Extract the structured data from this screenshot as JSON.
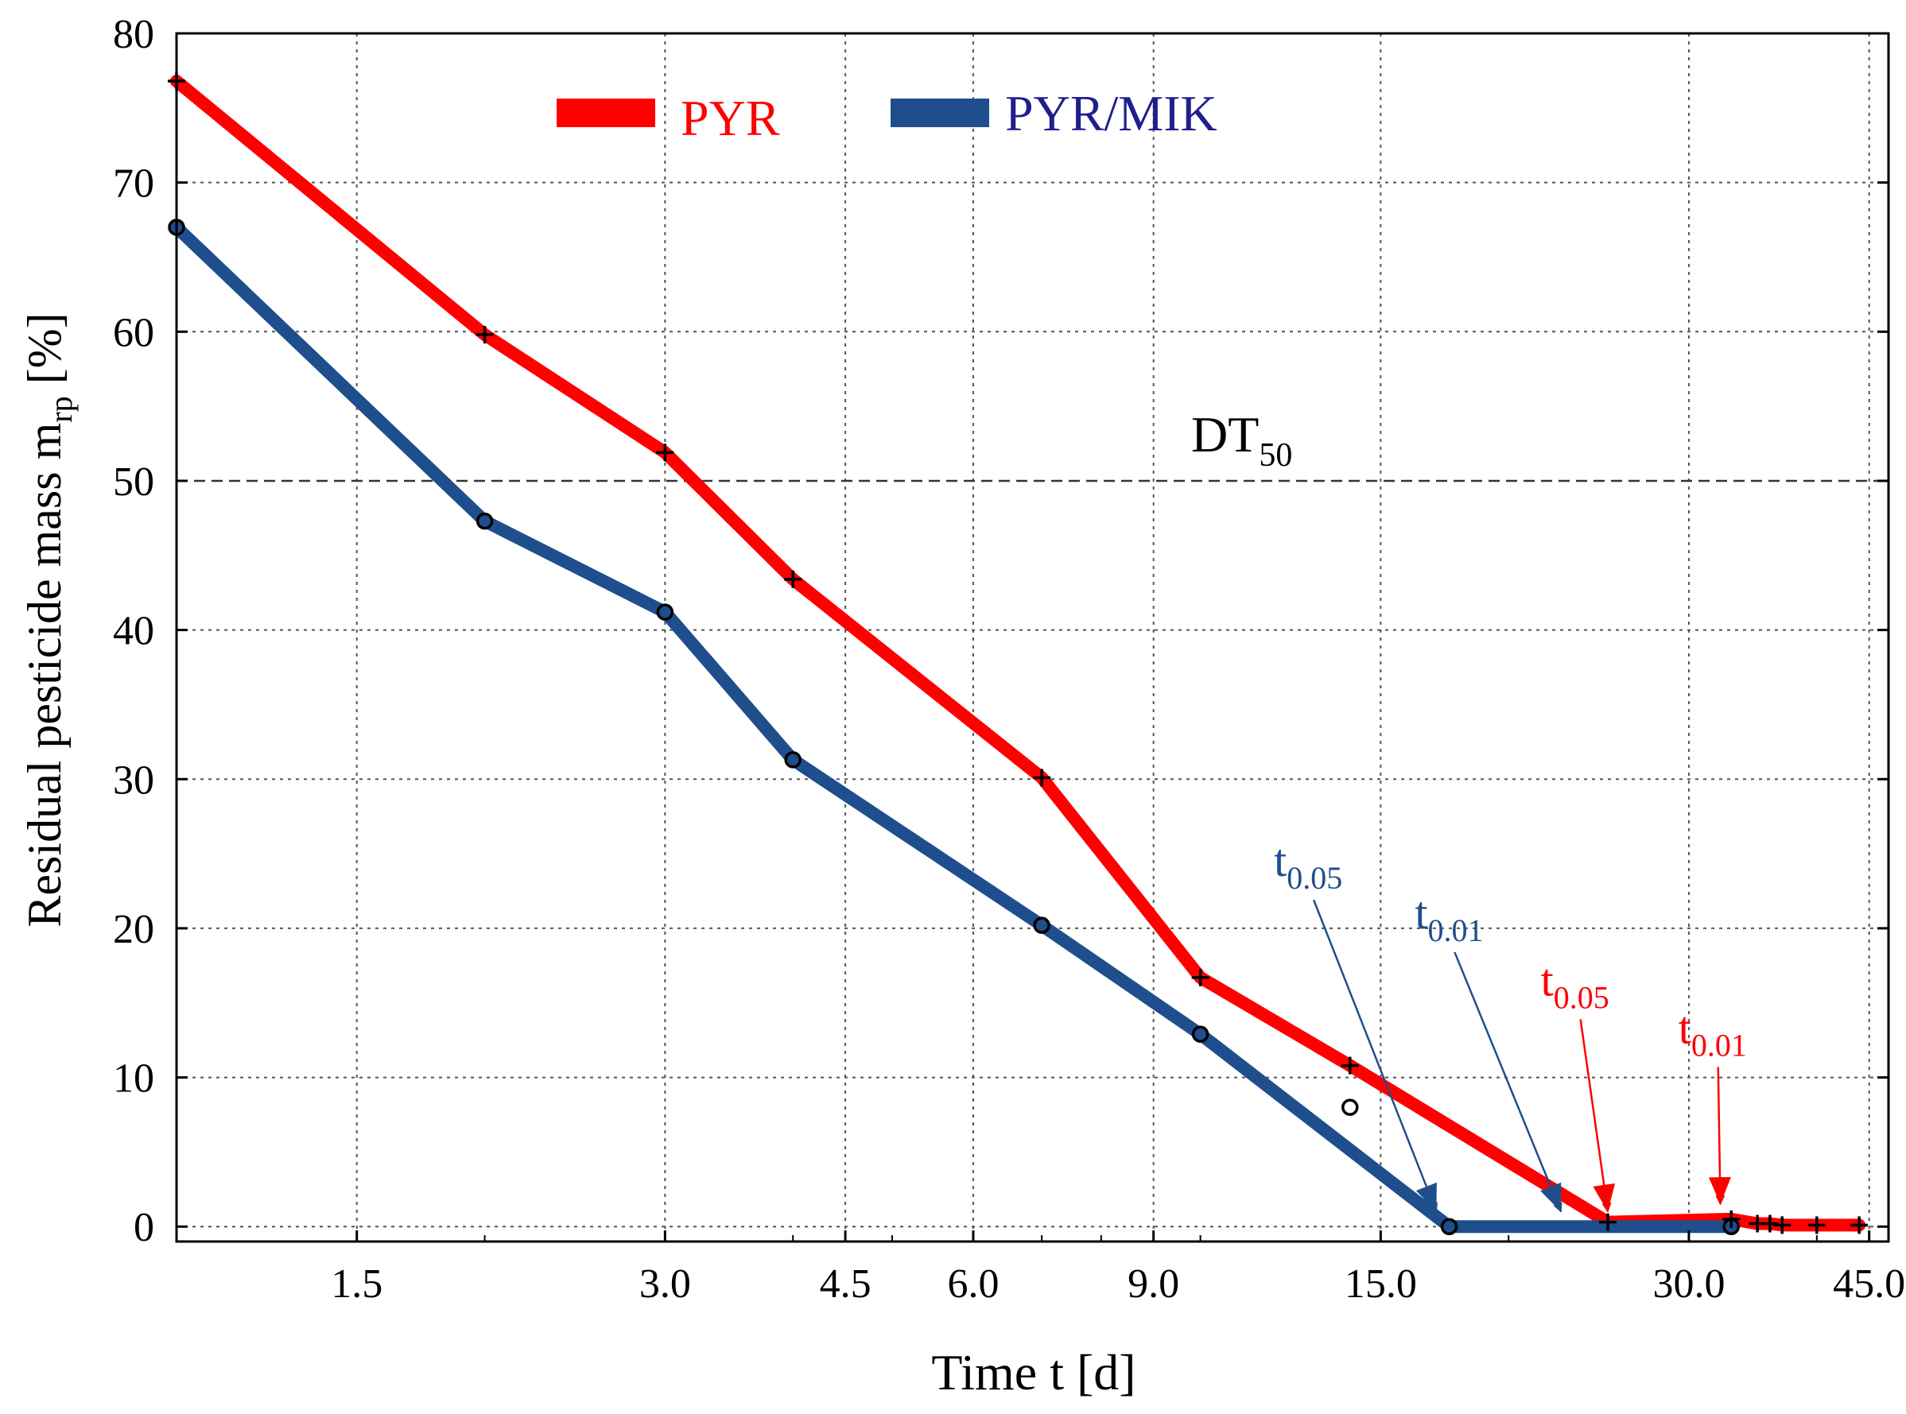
{
  "chart_data": {
    "type": "line",
    "title": "",
    "xlabel": "Time t [d]",
    "ylabel_main": "Residual pesticide mass m",
    "ylabel_sub": "rp",
    "ylabel_unit": "[%]",
    "x_scale": "log",
    "xlim": [
      1.0,
      47.0
    ],
    "ylim": [
      -1,
      80
    ],
    "x_ticks": [
      1.5,
      3.0,
      4.5,
      6.0,
      9.0,
      15.0,
      30.0,
      45.0
    ],
    "x_tick_labels": [
      "1.5",
      "3.0",
      "4.5",
      "6.0",
      "9.0",
      "15.0",
      "30.0",
      "45.0"
    ],
    "y_ticks": [
      0,
      10,
      20,
      30,
      40,
      50,
      60,
      70,
      80
    ],
    "y_tick_labels": [
      "0",
      "10",
      "20",
      "30",
      "40",
      "50",
      "60",
      "70",
      "80"
    ],
    "grid": true,
    "legend_position": "top-center",
    "colors": {
      "pyr": "#ff0000",
      "pyrmik": "#1f4e8c",
      "axis": "#000000"
    },
    "series": [
      {
        "name": "PYR",
        "marker": "plus",
        "x": [
          1.0,
          2.0,
          3.0,
          4.0,
          7.0,
          10.0,
          14.0,
          25.0,
          33.0,
          35.0,
          36.0,
          37.0,
          40.0,
          44.0
        ],
        "y": [
          76.8,
          59.8,
          51.9,
          43.4,
          30.1,
          16.7,
          10.8,
          0.3,
          0.5,
          0.2,
          0.2,
          0.1,
          0.1,
          0.1
        ]
      },
      {
        "name": "PYR/MIK",
        "marker": "circle",
        "x": [
          1.0,
          2.0,
          3.0,
          4.0,
          7.0,
          10.0,
          17.5,
          33.0
        ],
        "y": [
          67.0,
          47.3,
          41.2,
          31.3,
          20.2,
          12.9,
          0.0,
          0.0
        ]
      }
    ],
    "outlier_point": {
      "series": "PYR/MIK",
      "x": 14.0,
      "y": 8.0
    },
    "reference_line": {
      "y": 50,
      "label_main": "DT",
      "label_sub": "50"
    },
    "annotations": [
      {
        "label_main": "t",
        "label_sub": "0.05",
        "color": "#1f4e8c",
        "x": 11.8,
        "y": 23.5,
        "arrow_to": [
          17.0,
          1.0
        ]
      },
      {
        "label_main": "t",
        "label_sub": "0.01",
        "color": "#1f4e8c",
        "x": 16.2,
        "y": 20.0,
        "arrow_to": [
          22.5,
          1.0
        ]
      },
      {
        "label_main": "t",
        "label_sub": "0.05",
        "color": "#ff0000",
        "x": 21.5,
        "y": 15.5,
        "arrow_to": [
          25.0,
          1.0
        ]
      },
      {
        "label_main": "t",
        "label_sub": "0.01",
        "color": "#ff0000",
        "x": 29.3,
        "y": 12.3,
        "arrow_to": [
          32.2,
          1.5
        ]
      }
    ]
  }
}
